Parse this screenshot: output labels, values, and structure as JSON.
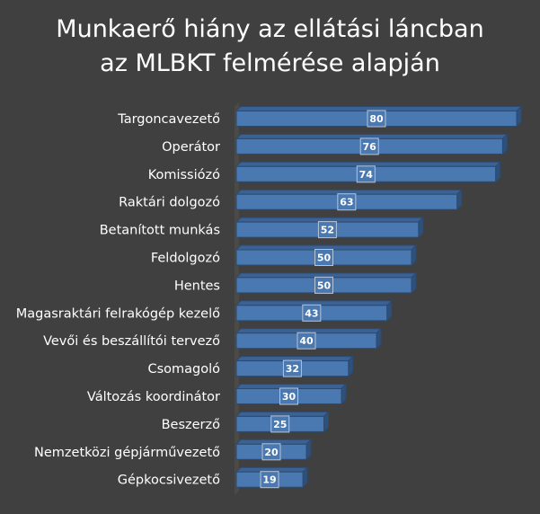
{
  "chart_data": {
    "type": "bar",
    "orientation": "horizontal",
    "style": "3d",
    "title_lines": [
      "Munkaerő hiány az ellátási láncban",
      "az MLBKT felmérése alapján"
    ],
    "categories": [
      "Targoncavezető",
      "Operátor",
      "Komissiózó",
      "Raktári dolgozó",
      "Betanított munkás",
      "Feldolgozó",
      "Hentes",
      "Magasraktári felrakógép kezelő",
      "Vevői és beszállítói tervező",
      "Csomagoló",
      "Változás koordinátor",
      "Beszerző",
      "Nemzetközi gépjárművezető",
      "Gépkocsivezető"
    ],
    "values": [
      80,
      76,
      74,
      63,
      52,
      50,
      50,
      43,
      40,
      32,
      30,
      25,
      20,
      19
    ],
    "xlim": [
      0,
      80
    ],
    "grid": false,
    "legend": "none",
    "colors": {
      "bar": "#4a78b0",
      "bar_top": "#3c6294",
      "bar_side": "#2f5078",
      "background": "#404040",
      "text": "#ffffff"
    }
  }
}
